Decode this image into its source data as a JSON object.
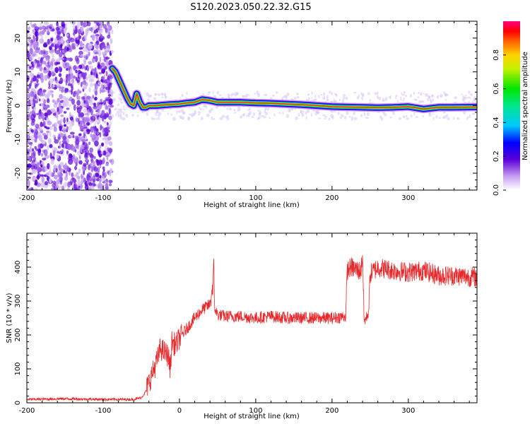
{
  "figure_title": "S120.2023.050.22.32.G15",
  "colors": {
    "snr_line": "#e8292b",
    "scatter_noise": "#7a2fe0",
    "ridge_core": "#e8292b",
    "axis": "#000000"
  },
  "chart_data": [
    {
      "type": "heatmap",
      "title": "S120.2023.050.22.32.G15",
      "xlabel": "Height of straight line (km)",
      "ylabel": "Frequency (Hz)",
      "xlim": [
        -200,
        390
      ],
      "ylim": [
        -25,
        25
      ],
      "xticks": [
        -200,
        -100,
        0,
        100,
        200,
        300
      ],
      "yticks": [
        -20,
        -10,
        0,
        10,
        20
      ],
      "grid": false,
      "noise_region_x": [
        -200,
        -88
      ],
      "ridge": {
        "x": [
          -88,
          -84,
          -80,
          -76,
          -72,
          -68,
          -64,
          -60,
          -56,
          -52,
          -48,
          -44,
          -40,
          -30,
          -20,
          -10,
          0,
          10,
          20,
          30,
          40,
          50,
          60,
          80,
          100,
          120,
          140,
          160,
          180,
          200,
          220,
          240,
          260,
          280,
          300,
          320,
          340,
          360,
          390
        ],
        "y": [
          11,
          10,
          8,
          6,
          4,
          2,
          0.5,
          0,
          3.5,
          1,
          -0.5,
          -0.5,
          0,
          0,
          0.2,
          0.4,
          0.5,
          0.8,
          1,
          1.8,
          1.5,
          1,
          1,
          1,
          0.8,
          0.7,
          0.5,
          0.3,
          0,
          -0.3,
          -0.4,
          -0.5,
          -0.6,
          -0.5,
          -0.3,
          -1,
          -0.5,
          -0.5,
          -0.4
        ]
      },
      "colorbar": {
        "label": "Normalized spectral amplitude",
        "range": [
          0,
          1
        ],
        "ticks": [
          0.0,
          0.2,
          0.4,
          0.6,
          0.8
        ],
        "tick_labels": [
          "0.0",
          "0.2",
          "0.4",
          "0.6",
          "0.8"
        ]
      }
    },
    {
      "type": "line",
      "xlabel": "Height of straight line (km)",
      "ylabel": "SNR (10 * v/v)",
      "xlim": [
        -200,
        390
      ],
      "ylim": [
        0,
        500
      ],
      "xticks": [
        -200,
        -100,
        0,
        100,
        200,
        300
      ],
      "yticks": [
        0,
        100,
        200,
        300,
        400
      ],
      "grid": false,
      "series": [
        {
          "x": [
            -200,
            -150,
            -100,
            -60,
            -50,
            -45,
            -40,
            -35,
            -30,
            -25,
            -20,
            -15,
            -12,
            -10,
            -5,
            0,
            10,
            20,
            30,
            40,
            44,
            45,
            46,
            50,
            60,
            80,
            100,
            120,
            140,
            160,
            180,
            200,
            218,
            220,
            225,
            230,
            235,
            238,
            240,
            242,
            245,
            248,
            250,
            260,
            280,
            300,
            320,
            340,
            360,
            390
          ],
          "y": [
            10,
            12,
            10,
            10,
            15,
            30,
            60,
            90,
            120,
            160,
            150,
            140,
            100,
            180,
            170,
            190,
            220,
            250,
            275,
            290,
            350,
            400,
            280,
            260,
            255,
            255,
            250,
            255,
            250,
            250,
            250,
            250,
            255,
            390,
            400,
            395,
            390,
            390,
            440,
            240,
            250,
            270,
            380,
            400,
            390,
            385,
            390,
            375,
            375,
            370
          ]
        }
      ]
    }
  ]
}
